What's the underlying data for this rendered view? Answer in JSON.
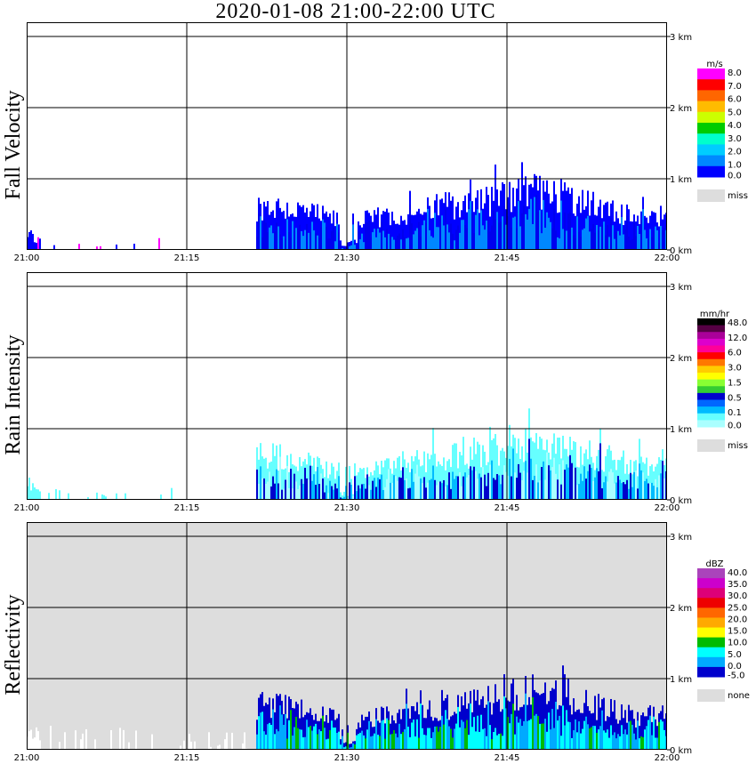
{
  "title": "2020-01-08   21:00-22:00 UTC",
  "chart_data": [
    {
      "type": "heatmap",
      "ylabel": "Fall Velocity",
      "x_ticks": [
        "21:00",
        "21:15",
        "21:30",
        "21:45",
        "22:00"
      ],
      "y_ticks": [
        "0 km",
        "1 km",
        "2 km",
        "3 km"
      ],
      "ylim_km": [
        0,
        3
      ],
      "grid": true,
      "background": "#ffffff",
      "legend": {
        "unit": "m/s",
        "labels": [
          "8.0",
          "7.0",
          "6.0",
          "5.0",
          "4.0",
          "3.0",
          "2.0",
          "1.0",
          "0.0",
          "miss"
        ],
        "colors": [
          "#ff00ff",
          "#ff0000",
          "#ff6600",
          "#ffbb00",
          "#ccff00",
          "#00cc00",
          "#00ffcc",
          "#00ccff",
          "#0088ff",
          "#0000ff",
          "#dddddd"
        ]
      },
      "echo_top_km": [
        {
          "t": "21:00",
          "h": 0.35
        },
        {
          "t": "21:01",
          "h": 0.2
        },
        {
          "t": "21:03",
          "h": 0.15
        },
        {
          "t": "21:06",
          "h": 0.1
        },
        {
          "t": "21:11",
          "h": 0.12
        },
        {
          "t": "21:13",
          "h": 0.2
        },
        {
          "t": "21:22",
          "h": 0.75
        },
        {
          "t": "21:24",
          "h": 0.72
        },
        {
          "t": "21:27",
          "h": 0.6
        },
        {
          "t": "21:30",
          "h": 0.45
        },
        {
          "t": "21:33",
          "h": 0.55
        },
        {
          "t": "21:36",
          "h": 0.65
        },
        {
          "t": "21:39",
          "h": 0.75
        },
        {
          "t": "21:42",
          "h": 0.8
        },
        {
          "t": "21:45",
          "h": 0.9
        },
        {
          "t": "21:48",
          "h": 1.0
        },
        {
          "t": "21:51",
          "h": 0.85
        },
        {
          "t": "21:54",
          "h": 0.7
        },
        {
          "t": "21:57",
          "h": 0.55
        },
        {
          "t": "22:00",
          "h": 0.6
        }
      ]
    },
    {
      "type": "heatmap",
      "ylabel": "Rain Intensity",
      "x_ticks": [
        "21:00",
        "21:15",
        "21:30",
        "21:45",
        "22:00"
      ],
      "y_ticks": [
        "0 km",
        "1 km",
        "2 km",
        "3 km"
      ],
      "ylim_km": [
        0,
        3
      ],
      "grid": true,
      "background": "#ffffff",
      "legend": {
        "unit": "mm/hr",
        "labels": [
          "48.0",
          "12.0",
          "6.0",
          "3.0",
          "1.5",
          "0.5",
          "0.1",
          "0.0",
          "miss"
        ],
        "colors": [
          "#000000",
          "#550044",
          "#aa0099",
          "#dd00cc",
          "#ff0099",
          "#ff0000",
          "#ff7700",
          "#ffcc00",
          "#ffff00",
          "#88ff33",
          "#33cc33",
          "#0000cc",
          "#0066ff",
          "#00bbff",
          "#66ffff",
          "#aaffff",
          "#dddddd"
        ]
      },
      "echo_top_km": [
        {
          "t": "21:00",
          "h": 0.35
        },
        {
          "t": "21:01",
          "h": 0.2
        },
        {
          "t": "21:03",
          "h": 0.15
        },
        {
          "t": "21:06",
          "h": 0.1
        },
        {
          "t": "21:13",
          "h": 0.2
        },
        {
          "t": "21:22",
          "h": 0.75
        },
        {
          "t": "21:24",
          "h": 0.72
        },
        {
          "t": "21:27",
          "h": 0.6
        },
        {
          "t": "21:30",
          "h": 0.45
        },
        {
          "t": "21:33",
          "h": 0.55
        },
        {
          "t": "21:36",
          "h": 0.65
        },
        {
          "t": "21:39",
          "h": 0.75
        },
        {
          "t": "21:42",
          "h": 0.8
        },
        {
          "t": "21:45",
          "h": 0.9
        },
        {
          "t": "21:48",
          "h": 1.0
        },
        {
          "t": "21:51",
          "h": 0.85
        },
        {
          "t": "21:54",
          "h": 0.7
        },
        {
          "t": "21:57",
          "h": 0.55
        },
        {
          "t": "22:00",
          "h": 0.6
        }
      ]
    },
    {
      "type": "heatmap",
      "ylabel": "Reflectivity",
      "x_ticks": [
        "21:00",
        "21:15",
        "21:30",
        "21:45",
        "22:00"
      ],
      "y_ticks": [
        "0 km",
        "1 km",
        "2 km",
        "3 km"
      ],
      "ylim_km": [
        0,
        3
      ],
      "grid": true,
      "background": "#dddddd",
      "legend": {
        "unit": "dBZ",
        "labels": [
          "40.0",
          "35.0",
          "30.0",
          "25.0",
          "20.0",
          "15.0",
          "10.0",
          "5.0",
          "0.0",
          "-5.0",
          "none"
        ],
        "colors": [
          "#aa44bb",
          "#cc00cc",
          "#dd0077",
          "#ee0000",
          "#ff6600",
          "#ffaa00",
          "#ffff00",
          "#00bb00",
          "#00ffff",
          "#00aaff",
          "#0000cc",
          "#dddddd"
        ]
      },
      "echo_top_km": [
        {
          "t": "21:00",
          "h": 0.4
        },
        {
          "t": "21:04",
          "h": 0.3
        },
        {
          "t": "21:08",
          "h": 0.35
        },
        {
          "t": "21:14",
          "h": 0.25
        },
        {
          "t": "21:18",
          "h": 0.2
        },
        {
          "t": "21:22",
          "h": 0.75
        },
        {
          "t": "21:24",
          "h": 0.72
        },
        {
          "t": "21:27",
          "h": 0.6
        },
        {
          "t": "21:30",
          "h": 0.45
        },
        {
          "t": "21:33",
          "h": 0.55
        },
        {
          "t": "21:36",
          "h": 0.65
        },
        {
          "t": "21:39",
          "h": 0.75
        },
        {
          "t": "21:42",
          "h": 0.8
        },
        {
          "t": "21:45",
          "h": 0.9
        },
        {
          "t": "21:48",
          "h": 1.0
        },
        {
          "t": "21:51",
          "h": 0.85
        },
        {
          "t": "21:54",
          "h": 0.7
        },
        {
          "t": "21:57",
          "h": 0.55
        },
        {
          "t": "22:00",
          "h": 0.6
        }
      ]
    }
  ]
}
